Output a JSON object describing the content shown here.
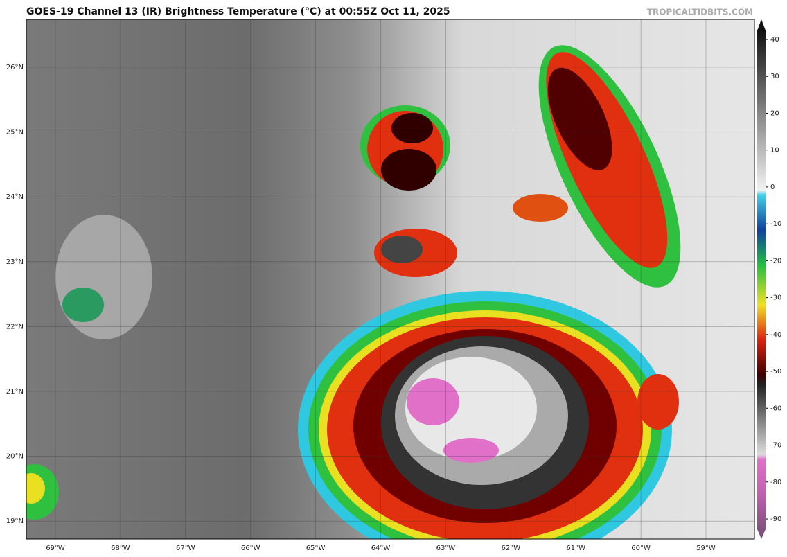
{
  "header": {
    "title": "GOES-19 Channel 13 (IR) Brightness Temperature (°C) at 00:55Z Oct 11, 2025",
    "credit": "TROPICALTIDBITS.COM"
  },
  "map": {
    "latitudes": [
      "26°N",
      "25°N",
      "24°N",
      "23°N",
      "22°N",
      "21°N",
      "20°N",
      "19°N"
    ],
    "longitudes": [
      "69°W",
      "68°W",
      "67°W",
      "66°W",
      "65°W",
      "64°W",
      "63°W",
      "62°W",
      "61°W",
      "60°W",
      "59°W"
    ]
  },
  "colorbar": {
    "ticks": [
      40,
      30,
      20,
      10,
      0,
      -10,
      -20,
      -30,
      -40,
      -50,
      -60,
      -70,
      -80,
      -90
    ]
  }
}
